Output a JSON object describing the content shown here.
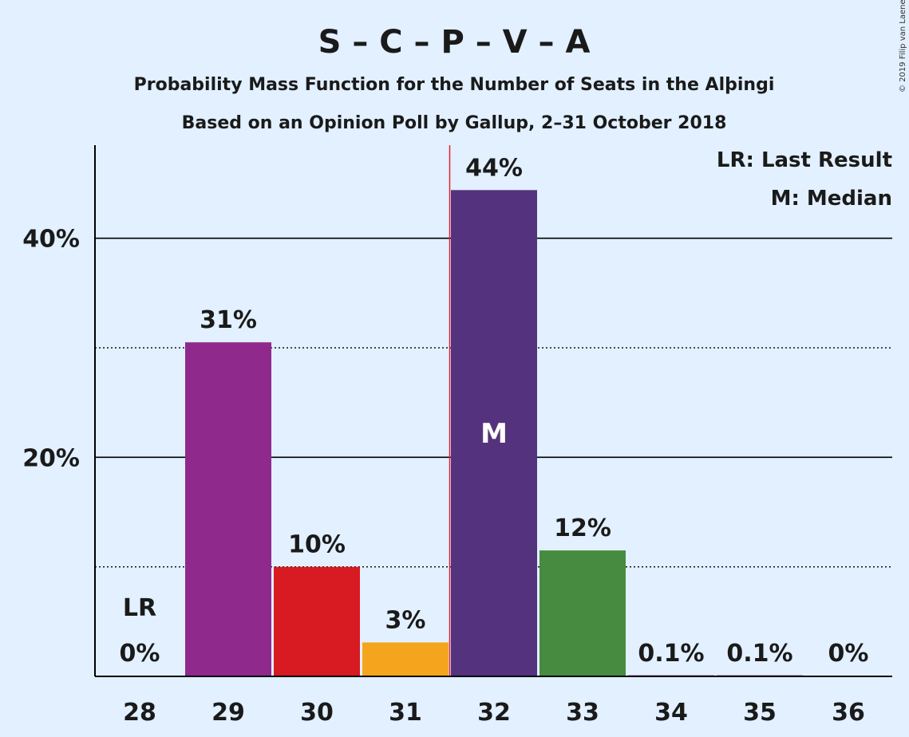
{
  "chart_data": {
    "type": "bar",
    "title": "S – C – P – V – A",
    "subtitle": "Probability Mass Function for the Number of Seats in the Alþingi",
    "subtitle2": "Based on an Opinion Poll by Gallup, 2–31 October 2018",
    "copyright": "© 2019 Filip van Laenen",
    "categories": [
      "28",
      "29",
      "30",
      "31",
      "32",
      "33",
      "34",
      "35",
      "36"
    ],
    "values": [
      0,
      30.5,
      10.0,
      3.1,
      44.4,
      11.5,
      0.1,
      0.1,
      0
    ],
    "data_labels": [
      "0%",
      "31%",
      "10%",
      "3%",
      "44%",
      "12%",
      "0.1%",
      "0.1%",
      "0%"
    ],
    "colors": [
      "#8f2a8c",
      "#8f2a8c",
      "#d81b22",
      "#f5a51d",
      "#55327e",
      "#468b40",
      "#8f2a8c",
      "#8f2a8c",
      "#8f2a8c"
    ],
    "ylim": [
      0,
      48.5
    ],
    "yticks": [
      {
        "value": 20,
        "label": "20%"
      },
      {
        "value": 40,
        "label": "40%"
      }
    ],
    "minor_gridlines": [
      10,
      30
    ],
    "grid": true,
    "median_category": "32",
    "median_label": "M",
    "last_result_category": "28",
    "last_result_label": "LR",
    "legend": [
      "LR: Last Result",
      "M: Median"
    ],
    "legend_position": "top-right",
    "marker_line_color": "#e0202a"
  }
}
